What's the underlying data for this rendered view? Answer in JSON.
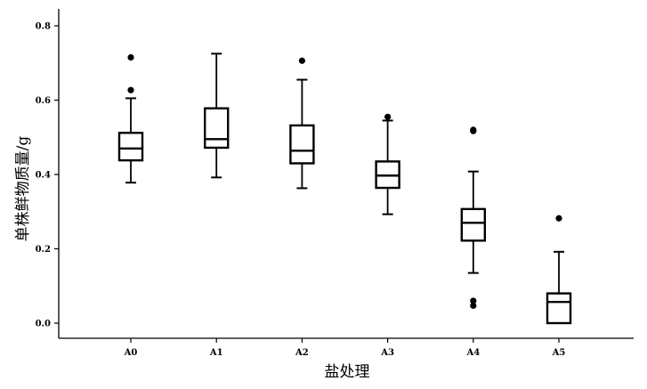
{
  "chart_data": {
    "type": "box",
    "title": "",
    "xlabel": "盐处理",
    "ylabel": "单株鲜物质量/g",
    "categories": [
      "A0",
      "A1",
      "A2",
      "A3",
      "A4",
      "A5"
    ],
    "ylim": [
      -0.04,
      0.84
    ],
    "yticks": [
      "0.0",
      "0.2",
      "0.4",
      "0.6",
      "0.8"
    ],
    "grid": false,
    "boxes": [
      {
        "category": "A0",
        "whisker_low": 0.378,
        "q1": 0.438,
        "median": 0.47,
        "q3": 0.512,
        "whisker_high": 0.605,
        "outliers": [
          0.715,
          0.627
        ]
      },
      {
        "category": "A1",
        "whisker_low": 0.392,
        "q1": 0.472,
        "median": 0.495,
        "q3": 0.578,
        "whisker_high": 0.725,
        "outliers": []
      },
      {
        "category": "A2",
        "whisker_low": 0.363,
        "q1": 0.43,
        "median": 0.464,
        "q3": 0.532,
        "whisker_high": 0.655,
        "outliers": [
          0.706
        ]
      },
      {
        "category": "A3",
        "whisker_low": 0.293,
        "q1": 0.364,
        "median": 0.397,
        "q3": 0.435,
        "whisker_high": 0.545,
        "outliers": [
          0.555
        ]
      },
      {
        "category": "A4",
        "whisker_low": 0.135,
        "q1": 0.222,
        "median": 0.27,
        "q3": 0.307,
        "whisker_high": 0.408,
        "outliers": [
          0.52,
          0.517,
          0.06,
          0.047
        ]
      },
      {
        "category": "A5",
        "whisker_low": 0.0,
        "q1": 0.0,
        "median": 0.057,
        "q3": 0.08,
        "whisker_high": 0.192,
        "outliers": [
          0.282
        ]
      }
    ]
  }
}
